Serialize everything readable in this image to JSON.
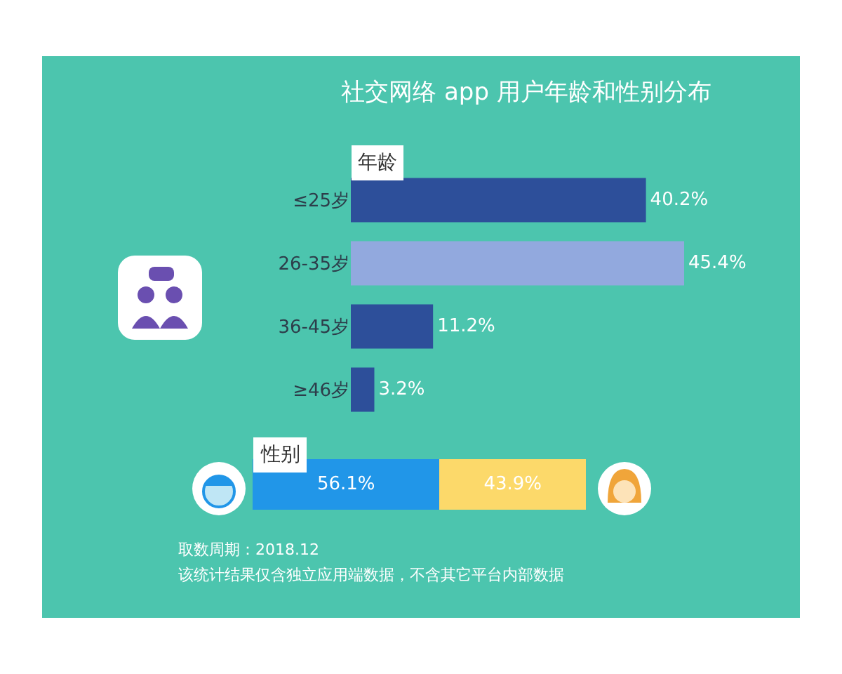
{
  "chart_data": [
    {
      "type": "bar",
      "title": "社交网络 app 用户年龄和性别分布",
      "ylabel": "年龄",
      "orientation": "horizontal",
      "categories": [
        "≤25岁",
        "26-35岁",
        "36-45岁",
        "≥46岁"
      ],
      "values": [
        40.2,
        45.4,
        11.2,
        3.2
      ],
      "colors": [
        "#2d4f9a",
        "#92a9de",
        "#2d4f9a",
        "#2d4f9a"
      ],
      "data_labels": true,
      "value_labels": [
        "40.2%",
        "45.4%",
        "11.2%",
        "3.2%"
      ]
    },
    {
      "type": "bar",
      "ylabel": "性别",
      "orientation": "horizontal",
      "stacked": true,
      "categories": [
        null
      ],
      "series": [
        {
          "color": "#2196e8",
          "values": [
            56.1
          ],
          "value_labels": [
            "56.1%"
          ]
        },
        {
          "color": "#fcd96a",
          "values": [
            43.9
          ],
          "value_labels": [
            "43.9%"
          ]
        }
      ],
      "data_labels": true,
      "annotations": [
        "取数周期：2018.12",
        "该统计结果仅含独立应用端数据，不含其它平台内部数据"
      ]
    }
  ]
}
